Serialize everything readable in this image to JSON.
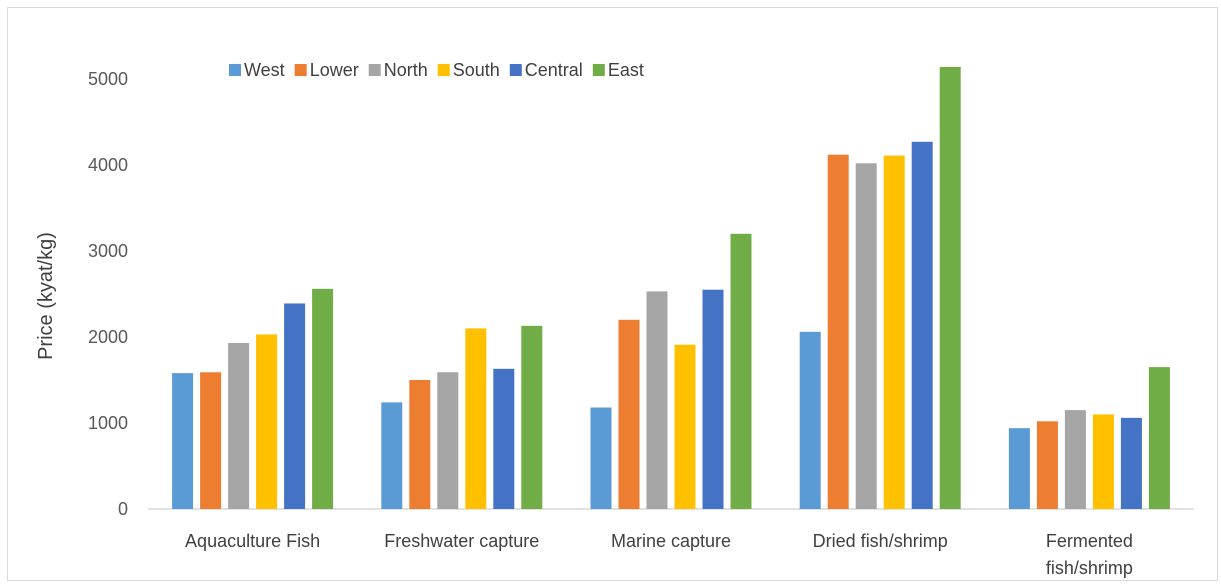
{
  "chart_data": {
    "type": "bar",
    "title": "",
    "xlabel": "",
    "ylabel": "Price (kyat/kg)",
    "ylim": [
      0,
      5000
    ],
    "yticks": [
      0,
      1000,
      2000,
      3000,
      4000,
      5000
    ],
    "grid": false,
    "legend_position": "top",
    "categories": [
      [
        "Aquaculture Fish"
      ],
      [
        "Freshwater capture"
      ],
      [
        "Marine capture"
      ],
      [
        "Dried fish/shrimp"
      ],
      [
        "Fermented",
        "fish/shrimp"
      ]
    ],
    "series": [
      {
        "name": "West",
        "color": "#5b9bd5",
        "values": [
          1580,
          1240,
          1180,
          2060,
          940
        ]
      },
      {
        "name": "Lower",
        "color": "#ed7d31",
        "values": [
          1590,
          1500,
          2200,
          4120,
          1020
        ]
      },
      {
        "name": "North",
        "color": "#a5a5a5",
        "values": [
          1930,
          1590,
          2530,
          4020,
          1150
        ]
      },
      {
        "name": "South",
        "color": "#ffc000",
        "values": [
          2030,
          2100,
          1910,
          4110,
          1100
        ]
      },
      {
        "name": "Central",
        "color": "#4472c4",
        "values": [
          2390,
          1630,
          2550,
          4270,
          1060
        ]
      },
      {
        "name": "East",
        "color": "#70ad47",
        "values": [
          2560,
          2130,
          3200,
          5140,
          1650
        ]
      }
    ]
  }
}
